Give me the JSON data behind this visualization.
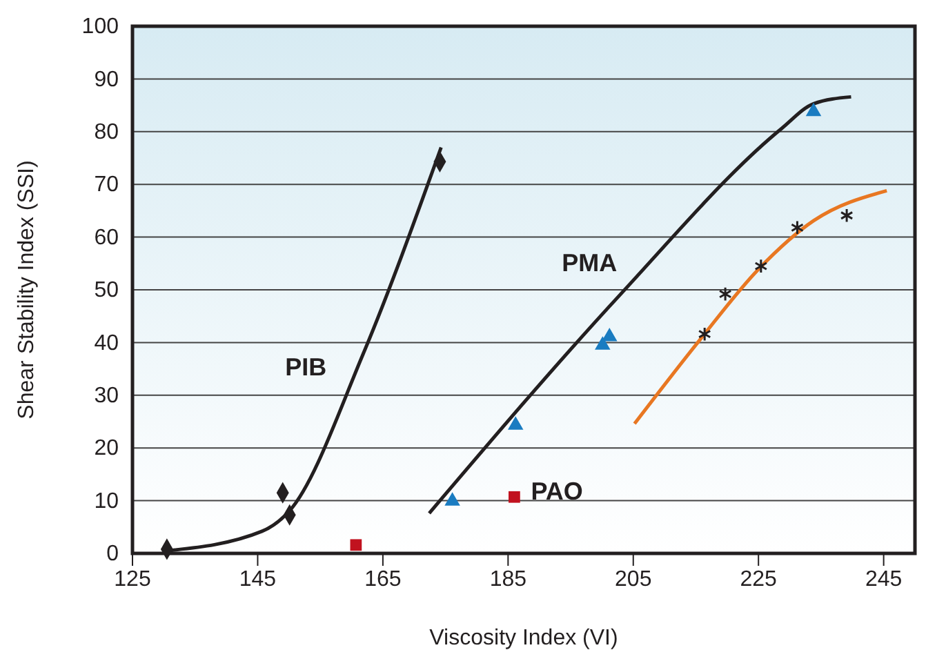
{
  "chart_data": {
    "type": "scatter",
    "xlabel": "Viscosity Index (VI)",
    "ylabel": "Shear Stability Index (SSI)",
    "xlim": [
      125,
      250
    ],
    "xticks": [
      125,
      145,
      165,
      185,
      205,
      225,
      245
    ],
    "ylim": [
      0,
      100
    ],
    "yticks": [
      0,
      10,
      20,
      30,
      40,
      50,
      60,
      70,
      80,
      90,
      100
    ],
    "grid": "y",
    "legend": false,
    "series": [
      {
        "type": "line",
        "name": "PIB",
        "color": "#231f20",
        "marker": "none",
        "x": [
          130.5,
          145.7,
          150.1,
          161.8,
          174.3
        ],
        "values": [
          0.5,
          4.2,
          8.1,
          37.7,
          77
        ]
      },
      {
        "type": "line",
        "name": "PMA",
        "color": "#231f20",
        "marker": "none",
        "x": [
          172.4,
          203,
          228.7,
          233.8,
          239.8
        ],
        "values": [
          7.6,
          49.2,
          80.6,
          85.3,
          86.6
        ]
      },
      {
        "type": "line",
        "color": "#e87722",
        "marker": "none",
        "x": [
          205.2,
          215.5,
          225,
          233.8,
          245.5
        ],
        "values": [
          24.6,
          40.3,
          53.9,
          63.1,
          68.8
        ]
      },
      {
        "color": "#231f20",
        "marker": "diamond",
        "x": [
          130.5,
          149,
          150.1,
          174.1
        ],
        "values": [
          0.8,
          11.5,
          7.3,
          74.3
        ]
      },
      {
        "color": "#1a7cc1",
        "marker": "triangle",
        "x": [
          176.1,
          186.2,
          200.1,
          201.2,
          233.8
        ],
        "values": [
          9.9,
          24.3,
          39.5,
          41.1,
          83.8
        ]
      },
      {
        "name": "PAO",
        "color": "#c1121f",
        "marker": "square",
        "x": [
          160.7,
          186
        ],
        "values": [
          1.6,
          10.7
        ]
      },
      {
        "color": "#231f20",
        "marker": "cross",
        "x": [
          216.4,
          219.7,
          225.4,
          231.2,
          239.1
        ],
        "values": [
          41.6,
          49.2,
          54.5,
          61.8,
          64.1
        ]
      }
    ]
  }
}
